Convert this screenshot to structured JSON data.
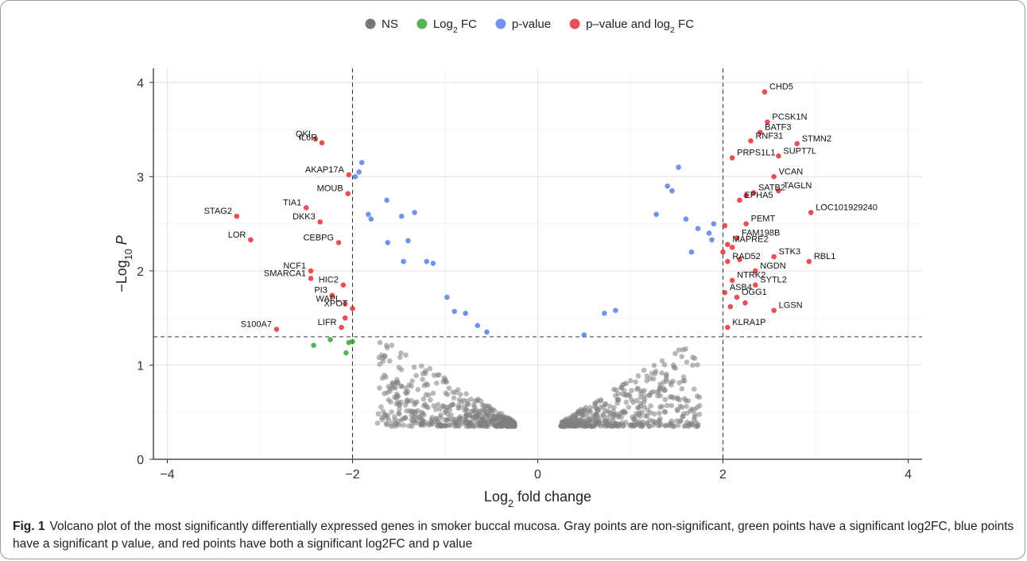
{
  "chart_data": {
    "type": "scatter",
    "title": "",
    "xlabel": "Log2 fold change",
    "ylabel": "-Log10 P",
    "xlim": [
      -4.15,
      4.15
    ],
    "ylim": [
      0,
      4.15
    ],
    "xticks": [
      "-4",
      "-2",
      "0",
      "2",
      "4"
    ],
    "yticks": [
      "0",
      "1",
      "2",
      "3",
      "4"
    ],
    "grid": true,
    "legend_position": "top",
    "thresholds": {
      "log2fc": [
        -2,
        2
      ],
      "neg_log10_p": 1.3
    },
    "legend": [
      {
        "key": "ns",
        "label": "NS",
        "color": "#555555"
      },
      {
        "key": "fc",
        "label": "Log2 FC",
        "color": "#2ca02c"
      },
      {
        "key": "p",
        "label": "p-value",
        "color": "#4f78e6"
      },
      {
        "key": "both",
        "label": "p–value and log2 FC",
        "color": "#e3242b"
      }
    ],
    "series": [
      {
        "name": "Log2 FC",
        "color": "#2ca02c",
        "points": [
          [
            -2.42,
            1.21
          ],
          [
            -2.24,
            1.27
          ],
          [
            -2.04,
            1.24
          ],
          [
            -2.0,
            1.25
          ],
          [
            -2.07,
            1.13
          ]
        ]
      },
      {
        "name": "p-value",
        "color": "#4f78e6",
        "points": [
          [
            -1.9,
            3.15
          ],
          [
            -1.93,
            3.05
          ],
          [
            -1.97,
            3.0
          ],
          [
            -1.63,
            2.75
          ],
          [
            -1.8,
            2.55
          ],
          [
            -1.83,
            2.6
          ],
          [
            -1.47,
            2.58
          ],
          [
            -1.33,
            2.62
          ],
          [
            -1.4,
            2.32
          ],
          [
            -1.62,
            2.3
          ],
          [
            -1.45,
            2.1
          ],
          [
            -1.2,
            2.1
          ],
          [
            -1.13,
            2.08
          ],
          [
            -0.98,
            1.72
          ],
          [
            -0.9,
            1.57
          ],
          [
            -0.78,
            1.55
          ],
          [
            -0.65,
            1.42
          ],
          [
            -0.55,
            1.35
          ],
          [
            1.52,
            3.1
          ],
          [
            1.4,
            2.9
          ],
          [
            1.45,
            2.85
          ],
          [
            1.28,
            2.6
          ],
          [
            1.6,
            2.55
          ],
          [
            1.73,
            2.45
          ],
          [
            1.85,
            2.4
          ],
          [
            1.9,
            2.5
          ],
          [
            1.88,
            2.33
          ],
          [
            1.66,
            2.2
          ],
          [
            0.72,
            1.55
          ],
          [
            0.84,
            1.58
          ],
          [
            0.5,
            1.32
          ]
        ]
      },
      {
        "name": "p–value and log2 FC",
        "color": "#e3242b",
        "points": [
          [
            -2.4,
            3.4
          ],
          [
            -2.33,
            3.36
          ],
          [
            -2.04,
            3.02
          ],
          [
            -2.05,
            2.82
          ],
          [
            -2.5,
            2.67
          ],
          [
            -2.35,
            2.52
          ],
          [
            -3.25,
            2.58
          ],
          [
            -3.1,
            2.33
          ],
          [
            -2.15,
            2.3
          ],
          [
            -2.45,
            2.0
          ],
          [
            -2.45,
            1.92
          ],
          [
            -2.1,
            1.85
          ],
          [
            -2.22,
            1.74
          ],
          [
            -2.08,
            1.65
          ],
          [
            -2.0,
            1.6
          ],
          [
            -2.08,
            1.5
          ],
          [
            -2.12,
            1.4
          ],
          [
            -2.82,
            1.38
          ],
          [
            2.45,
            3.9
          ],
          [
            2.48,
            3.58
          ],
          [
            2.4,
            3.47
          ],
          [
            2.8,
            3.35
          ],
          [
            2.3,
            3.38
          ],
          [
            2.6,
            3.22
          ],
          [
            2.1,
            3.2
          ],
          [
            2.55,
            3.0
          ],
          [
            2.33,
            2.83
          ],
          [
            2.25,
            2.8
          ],
          [
            2.18,
            2.75
          ],
          [
            2.6,
            2.85
          ],
          [
            2.95,
            2.62
          ],
          [
            2.25,
            2.5
          ],
          [
            2.02,
            2.48
          ],
          [
            2.15,
            2.35
          ],
          [
            2.05,
            2.28
          ],
          [
            2.1,
            2.25
          ],
          [
            2.0,
            2.2
          ],
          [
            2.18,
            2.12
          ],
          [
            2.55,
            2.15
          ],
          [
            2.93,
            2.1
          ],
          [
            2.05,
            2.1
          ],
          [
            2.35,
            2.0
          ],
          [
            2.1,
            1.9
          ],
          [
            2.35,
            1.85
          ],
          [
            2.02,
            1.77
          ],
          [
            2.15,
            1.72
          ],
          [
            2.24,
            1.66
          ],
          [
            2.08,
            1.62
          ],
          [
            2.55,
            1.58
          ],
          [
            2.05,
            1.4
          ]
        ]
      }
    ],
    "ns_cloud_note_omitted": null,
    "gene_labels": [
      {
        "name": "QKI",
        "x": -2.4,
        "y": 3.4
      },
      {
        "name": "IL6R",
        "x": -2.33,
        "y": 3.36
      },
      {
        "name": "AKAP17A",
        "x": -2.04,
        "y": 3.02
      },
      {
        "name": "MOUB",
        "x": -2.05,
        "y": 2.82
      },
      {
        "name": "TIA1",
        "x": -2.5,
        "y": 2.67
      },
      {
        "name": "STAG2",
        "x": -3.25,
        "y": 2.58
      },
      {
        "name": "DKK3",
        "x": -2.35,
        "y": 2.52
      },
      {
        "name": "LOR",
        "x": -3.1,
        "y": 2.33
      },
      {
        "name": "CEBPG",
        "x": -2.15,
        "y": 2.3
      },
      {
        "name": "NCF1",
        "x": -2.45,
        "y": 2.0
      },
      {
        "name": "SMARCA1",
        "x": -2.45,
        "y": 1.92
      },
      {
        "name": "HIC2",
        "x": -2.1,
        "y": 1.85
      },
      {
        "name": "PI3",
        "x": -2.22,
        "y": 1.74
      },
      {
        "name": "WAPL",
        "x": -2.08,
        "y": 1.65
      },
      {
        "name": "XPOT",
        "x": -2.0,
        "y": 1.6
      },
      {
        "name": "LIFR",
        "x": -2.12,
        "y": 1.4
      },
      {
        "name": "S100A7",
        "x": -2.82,
        "y": 1.38
      },
      {
        "name": "CHD5",
        "x": 2.45,
        "y": 3.9
      },
      {
        "name": "PCSK1N",
        "x": 2.48,
        "y": 3.58
      },
      {
        "name": "BATF3",
        "x": 2.4,
        "y": 3.47
      },
      {
        "name": "STMN2",
        "x": 2.8,
        "y": 3.35
      },
      {
        "name": "RNF31",
        "x": 2.3,
        "y": 3.38
      },
      {
        "name": "SUPT7L",
        "x": 2.6,
        "y": 3.22
      },
      {
        "name": "PRPS1L1",
        "x": 2.1,
        "y": 3.2
      },
      {
        "name": "VCAN",
        "x": 2.55,
        "y": 3.0
      },
      {
        "name": "SATB2",
        "x": 2.33,
        "y": 2.83
      },
      {
        "name": "TAGLN",
        "x": 2.6,
        "y": 2.85
      },
      {
        "name": "EPHA5",
        "x": 2.18,
        "y": 2.75
      },
      {
        "name": "LOC101929240",
        "x": 2.95,
        "y": 2.62
      },
      {
        "name": "PEMT",
        "x": 2.25,
        "y": 2.5
      },
      {
        "name": "FAM198B",
        "x": 2.15,
        "y": 2.35
      },
      {
        "name": "MAPRE2",
        "x": 2.05,
        "y": 2.28
      },
      {
        "name": "RAD52",
        "x": 2.05,
        "y": 2.1
      },
      {
        "name": "STK3",
        "x": 2.55,
        "y": 2.15
      },
      {
        "name": "RBL1",
        "x": 2.93,
        "y": 2.1
      },
      {
        "name": "NGDN",
        "x": 2.35,
        "y": 2.0
      },
      {
        "name": "NTRK2",
        "x": 2.1,
        "y": 1.9
      },
      {
        "name": "SYTL2",
        "x": 2.35,
        "y": 1.85
      },
      {
        "name": "ASB4",
        "x": 2.02,
        "y": 1.77
      },
      {
        "name": "OGG1",
        "x": 2.15,
        "y": 1.72
      },
      {
        "name": "LGSN",
        "x": 2.55,
        "y": 1.58
      },
      {
        "name": "KLRA1P",
        "x": 2.05,
        "y": 1.4
      }
    ]
  },
  "caption": {
    "fig_label": "Fig. 1",
    "text": "Volcano plot of the most significantly differentially expressed genes in smoker buccal mucosa. Gray points are non-significant, green points have a significant log2FC, blue points have a significant p value, and red points have both a significant log2FC and p value"
  }
}
